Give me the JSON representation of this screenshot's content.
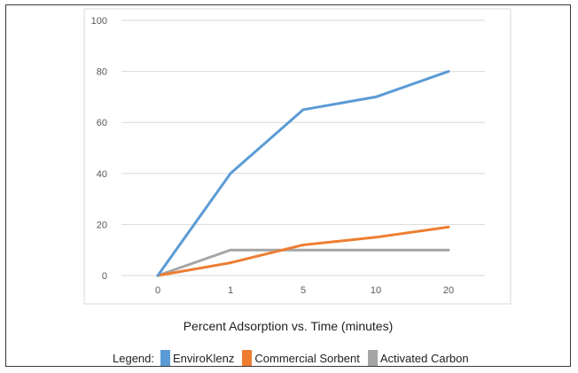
{
  "chart_data": {
    "type": "line",
    "categories": [
      "0",
      "1",
      "5",
      "10",
      "20"
    ],
    "series": [
      {
        "name": "EnviroKlenz",
        "color": "#5b9bd5",
        "values": [
          0,
          40,
          65,
          70,
          80
        ]
      },
      {
        "name": "Commercial Sorbent",
        "color": "#ed7d31",
        "values": [
          0,
          5,
          12,
          15,
          19
        ]
      },
      {
        "name": "Activated Carbon",
        "color": "#a5a5a5",
        "values": [
          0,
          10,
          10,
          10,
          10
        ]
      }
    ],
    "ylim": [
      0,
      100
    ],
    "yticks": [
      0,
      20,
      40,
      60,
      80,
      100
    ],
    "grid": true,
    "caption": "Percent Adsorption vs. Time (minutes)",
    "legend_title": "Legend:"
  }
}
